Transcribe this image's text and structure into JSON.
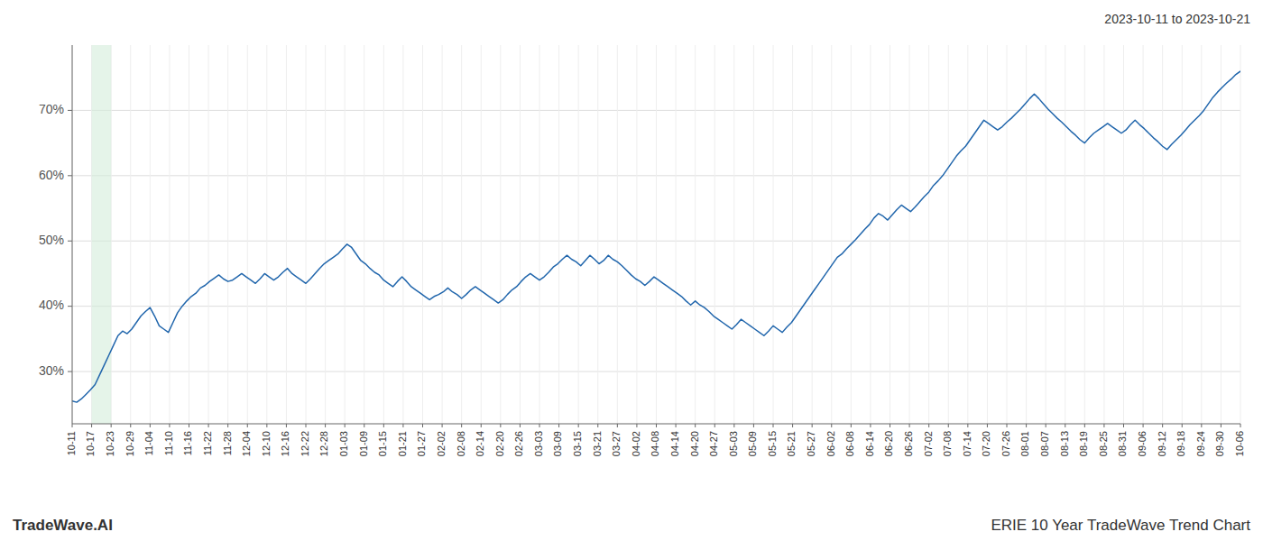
{
  "chart_data": {
    "type": "line",
    "title": "ERIE 10 Year TradeWave Trend Chart",
    "subtitle": "2023-10-11 to 2023-10-21",
    "annotations": [
      "TradeWave.AI"
    ],
    "color": "#2166ac",
    "grid": true,
    "highlight": {
      "xlim": [
        4.25,
        8.5
      ],
      "color": "#d4edda"
    },
    "xlim": [
      0,
      255
    ],
    "xticks": [
      {
        "value": 0,
        "label": "10-11"
      },
      {
        "value": 4.25,
        "label": "10-17"
      },
      {
        "value": 8.5,
        "label": "10-23"
      },
      {
        "value": 12.75,
        "label": "10-29"
      },
      {
        "value": 17,
        "label": "11-04"
      },
      {
        "value": 21.25,
        "label": "11-10"
      },
      {
        "value": 25.5,
        "label": "11-16"
      },
      {
        "value": 29.75,
        "label": "11-22"
      },
      {
        "value": 34,
        "label": "11-28"
      },
      {
        "value": 38.25,
        "label": "12-04"
      },
      {
        "value": 42.5,
        "label": "12-10"
      },
      {
        "value": 46.75,
        "label": "12-16"
      },
      {
        "value": 51,
        "label": "12-22"
      },
      {
        "value": 55.25,
        "label": "12-28"
      },
      {
        "value": 59.5,
        "label": "01-03"
      },
      {
        "value": 63.75,
        "label": "01-09"
      },
      {
        "value": 68,
        "label": "01-15"
      },
      {
        "value": 72.25,
        "label": "01-21"
      },
      {
        "value": 76.5,
        "label": "01-27"
      },
      {
        "value": 80.75,
        "label": "02-02"
      },
      {
        "value": 85,
        "label": "02-08"
      },
      {
        "value": 89.25,
        "label": "02-14"
      },
      {
        "value": 93.5,
        "label": "02-20"
      },
      {
        "value": 97.75,
        "label": "02-26"
      },
      {
        "value": 102,
        "label": "03-03"
      },
      {
        "value": 106.25,
        "label": "03-09"
      },
      {
        "value": 110.5,
        "label": "03-15"
      },
      {
        "value": 114.75,
        "label": "03-21"
      },
      {
        "value": 119,
        "label": "03-27"
      },
      {
        "value": 123.25,
        "label": "04-02"
      },
      {
        "value": 127.5,
        "label": "04-08"
      },
      {
        "value": 131.75,
        "label": "04-14"
      },
      {
        "value": 136,
        "label": "04-20"
      },
      {
        "value": 140.25,
        "label": "04-27"
      },
      {
        "value": 144.5,
        "label": "05-03"
      },
      {
        "value": 148.75,
        "label": "05-09"
      },
      {
        "value": 153,
        "label": "05-15"
      },
      {
        "value": 157.25,
        "label": "05-21"
      },
      {
        "value": 161.5,
        "label": "05-27"
      },
      {
        "value": 165.75,
        "label": "06-02"
      },
      {
        "value": 170,
        "label": "06-08"
      },
      {
        "value": 174.25,
        "label": "06-14"
      },
      {
        "value": 178.5,
        "label": "06-20"
      },
      {
        "value": 182.75,
        "label": "06-26"
      },
      {
        "value": 187,
        "label": "07-02"
      },
      {
        "value": 191.25,
        "label": "07-08"
      },
      {
        "value": 195.5,
        "label": "07-14"
      },
      {
        "value": 199.75,
        "label": "07-20"
      },
      {
        "value": 204,
        "label": "07-26"
      },
      {
        "value": 208.25,
        "label": "08-01"
      },
      {
        "value": 212.5,
        "label": "08-07"
      },
      {
        "value": 216.75,
        "label": "08-13"
      },
      {
        "value": 221,
        "label": "08-19"
      },
      {
        "value": 225.25,
        "label": "08-25"
      },
      {
        "value": 229.5,
        "label": "08-31"
      },
      {
        "value": 233.75,
        "label": "09-06"
      },
      {
        "value": 238,
        "label": "09-12"
      },
      {
        "value": 242.25,
        "label": "09-18"
      },
      {
        "value": 246.5,
        "label": "09-24"
      },
      {
        "value": 250.75,
        "label": "09-30"
      },
      {
        "value": 255,
        "label": "10-06"
      }
    ],
    "ylim": [
      22,
      80
    ],
    "yticks": [
      {
        "value": 30,
        "label": "30%"
      },
      {
        "value": 40,
        "label": "40%"
      },
      {
        "value": 50,
        "label": "50%"
      },
      {
        "value": 60,
        "label": "60%"
      },
      {
        "value": 70,
        "label": "70%"
      }
    ],
    "x": [
      0,
      1,
      2,
      3,
      4,
      5,
      6,
      7,
      8,
      9,
      10,
      11,
      12,
      13,
      14,
      15,
      16,
      17,
      18,
      19,
      20,
      21,
      22,
      23,
      24,
      25,
      26,
      27,
      28,
      29,
      30,
      31,
      32,
      33,
      34,
      35,
      36,
      37,
      38,
      39,
      40,
      41,
      42,
      43,
      44,
      45,
      46,
      47,
      48,
      49,
      50,
      51,
      52,
      53,
      54,
      55,
      56,
      57,
      58,
      59,
      60,
      61,
      62,
      63,
      64,
      65,
      66,
      67,
      68,
      69,
      70,
      71,
      72,
      73,
      74,
      75,
      76,
      77,
      78,
      79,
      80,
      81,
      82,
      83,
      84,
      85,
      86,
      87,
      88,
      89,
      90,
      91,
      92,
      93,
      94,
      95,
      96,
      97,
      98,
      99,
      100,
      101,
      102,
      103,
      104,
      105,
      106,
      107,
      108,
      109,
      110,
      111,
      112,
      113,
      114,
      115,
      116,
      117,
      118,
      119,
      120,
      121,
      122,
      123,
      124,
      125,
      126,
      127,
      128,
      129,
      130,
      131,
      132,
      133,
      134,
      135,
      136,
      137,
      138,
      139,
      140,
      141,
      142,
      143,
      144,
      145,
      146,
      147,
      148,
      149,
      150,
      151,
      152,
      153,
      154,
      155,
      156,
      157,
      158,
      159,
      160,
      161,
      162,
      163,
      164,
      165,
      166,
      167,
      168,
      169,
      170,
      171,
      172,
      173,
      174,
      175,
      176,
      177,
      178,
      179,
      180,
      181,
      182,
      183,
      184,
      185,
      186,
      187,
      188,
      189,
      190,
      191,
      192,
      193,
      194,
      195,
      196,
      197,
      198,
      199,
      200,
      201,
      202,
      203,
      204,
      205,
      206,
      207,
      208,
      209,
      210,
      211,
      212,
      213,
      214,
      215,
      216,
      217,
      218,
      219,
      220,
      221,
      222,
      223,
      224,
      225,
      226,
      227,
      228,
      229,
      230,
      231,
      232,
      233,
      234,
      235,
      236,
      237,
      238,
      239,
      240,
      241,
      242,
      243,
      244,
      245,
      246,
      247,
      248,
      249,
      250,
      251,
      252,
      253,
      254,
      255
    ],
    "values": [
      25.5,
      25.3,
      25.8,
      26.5,
      27.2,
      28.0,
      29.5,
      31.0,
      32.5,
      34.0,
      35.5,
      36.2,
      35.8,
      36.5,
      37.5,
      38.5,
      39.2,
      39.8,
      38.5,
      37.0,
      36.5,
      36.0,
      37.5,
      39.0,
      40.0,
      40.8,
      41.5,
      42.0,
      42.8,
      43.2,
      43.8,
      44.3,
      44.8,
      44.2,
      43.8,
      44.0,
      44.5,
      45.0,
      44.5,
      44.0,
      43.5,
      44.2,
      45.0,
      44.5,
      44.0,
      44.5,
      45.2,
      45.8,
      45.0,
      44.5,
      44.0,
      43.5,
      44.2,
      45.0,
      45.8,
      46.5,
      47.0,
      47.5,
      48.0,
      48.8,
      49.5,
      49.0,
      48.0,
      47.0,
      46.5,
      45.8,
      45.2,
      44.8,
      44.0,
      43.5,
      43.0,
      43.8,
      44.5,
      43.8,
      43.0,
      42.5,
      42.0,
      41.5,
      41.0,
      41.5,
      41.8,
      42.2,
      42.8,
      42.2,
      41.8,
      41.2,
      41.8,
      42.5,
      43.0,
      42.5,
      42.0,
      41.5,
      41.0,
      40.5,
      41.0,
      41.8,
      42.5,
      43.0,
      43.8,
      44.5,
      45.0,
      44.5,
      44.0,
      44.5,
      45.2,
      46.0,
      46.5,
      47.2,
      47.8,
      47.2,
      46.8,
      46.2,
      47.0,
      47.8,
      47.2,
      46.5,
      47.0,
      47.8,
      47.2,
      46.8,
      46.2,
      45.5,
      44.8,
      44.2,
      43.8,
      43.2,
      43.8,
      44.5,
      44.0,
      43.5,
      43.0,
      42.5,
      42.0,
      41.5,
      40.8,
      40.2,
      40.8,
      40.2,
      39.8,
      39.2,
      38.5,
      38.0,
      37.5,
      37.0,
      36.5,
      37.2,
      38.0,
      37.5,
      37.0,
      36.5,
      36.0,
      35.5,
      36.2,
      37.0,
      36.5,
      36.0,
      36.8,
      37.5,
      38.5,
      39.5,
      40.5,
      41.5,
      42.5,
      43.5,
      44.5,
      45.5,
      46.5,
      47.5,
      48.0,
      48.8,
      49.5,
      50.2,
      51.0,
      51.8,
      52.5,
      53.5,
      54.2,
      53.8,
      53.2,
      54.0,
      54.8,
      55.5,
      55.0,
      54.5,
      55.2,
      56.0,
      56.8,
      57.5,
      58.5,
      59.2,
      60.0,
      61.0,
      62.0,
      63.0,
      63.8,
      64.5,
      65.5,
      66.5,
      67.5,
      68.5,
      68.0,
      67.5,
      67.0,
      67.5,
      68.2,
      68.8,
      69.5,
      70.2,
      71.0,
      71.8,
      72.5,
      71.8,
      71.0,
      70.2,
      69.5,
      68.8,
      68.2,
      67.5,
      66.8,
      66.2,
      65.5,
      65.0,
      65.8,
      66.5,
      67.0,
      67.5,
      68.0,
      67.5,
      67.0,
      66.5,
      67.0,
      67.8,
      68.5,
      67.8,
      67.2,
      66.5,
      65.8,
      65.2,
      64.5,
      64.0,
      64.8,
      65.5,
      66.2,
      67.0,
      67.8,
      68.5,
      69.2,
      70.0,
      71.0,
      72.0,
      72.8,
      73.5,
      74.2,
      74.8,
      75.5,
      76.0
    ]
  }
}
